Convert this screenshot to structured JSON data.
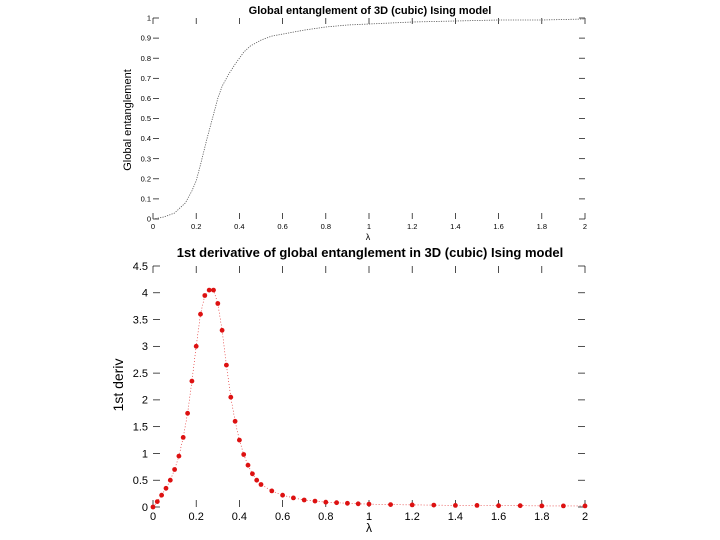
{
  "chart_data": [
    {
      "type": "line",
      "title": "Global entanglement of 3D (cubic) Ising model",
      "xlabel": "λ",
      "ylabel": "Global entanglement",
      "xlim": [
        0,
        2
      ],
      "ylim": [
        0,
        1
      ],
      "xticks": [
        0,
        0.2,
        0.4,
        0.6,
        0.8,
        1,
        1.2,
        1.4,
        1.6,
        1.8,
        2
      ],
      "xtick_labels": [
        "0",
        "0.2",
        "0.4",
        "0.6",
        "0.8",
        "1",
        "1.2",
        "1.4",
        "1.6",
        "1.8",
        "2"
      ],
      "yticks": [
        0,
        0.1,
        0.2,
        0.3,
        0.4,
        0.5,
        0.6,
        0.7,
        0.8,
        0.9,
        1
      ],
      "ytick_labels": [
        "0",
        "0.1",
        "0.2",
        "0.3",
        "0.4",
        "0.5",
        "0.6",
        "0.7",
        "0.8",
        "0.9",
        "1"
      ],
      "grid": false,
      "series": [
        {
          "color": "#555555",
          "x": [
            0.0,
            0.05,
            0.1,
            0.12,
            0.15,
            0.18,
            0.2,
            0.22,
            0.25,
            0.28,
            0.3,
            0.32,
            0.35,
            0.38,
            0.4,
            0.42,
            0.45,
            0.5,
            0.55,
            0.6,
            0.7,
            0.8,
            0.9,
            1.0,
            1.1,
            1.2,
            1.4,
            1.6,
            1.8,
            2.0
          ],
          "y": [
            0.0,
            0.01,
            0.03,
            0.05,
            0.08,
            0.14,
            0.19,
            0.27,
            0.4,
            0.52,
            0.6,
            0.66,
            0.72,
            0.77,
            0.8,
            0.83,
            0.86,
            0.89,
            0.91,
            0.92,
            0.94,
            0.955,
            0.965,
            0.97,
            0.975,
            0.98,
            0.985,
            0.99,
            0.99,
            0.995
          ]
        }
      ]
    },
    {
      "type": "scatter",
      "title": "1st derivative of global entanglement in 3D (cubic) Ising model",
      "xlabel": "λ",
      "ylabel": "1st deriv",
      "xlim": [
        0,
        2
      ],
      "ylim": [
        0,
        4.5
      ],
      "xticks": [
        0,
        0.2,
        0.4,
        0.6,
        0.8,
        1,
        1.2,
        1.4,
        1.6,
        1.8,
        2
      ],
      "xtick_labels": [
        "0",
        "0.2",
        "0.4",
        "0.6",
        "0.8",
        "1",
        "1.2",
        "1.4",
        "1.6",
        "1.8",
        "2"
      ],
      "yticks": [
        0,
        0.5,
        1,
        1.5,
        2,
        2.5,
        3,
        3.5,
        4,
        4.5
      ],
      "ytick_labels": [
        "0",
        "0.5",
        "1",
        "1.5",
        "2",
        "2.5",
        "3",
        "3.5",
        "4",
        "4.5"
      ],
      "grid": false,
      "series": [
        {
          "color": "#dd1111",
          "x": [
            0.0,
            0.02,
            0.04,
            0.06,
            0.08,
            0.1,
            0.12,
            0.14,
            0.16,
            0.18,
            0.2,
            0.22,
            0.24,
            0.26,
            0.28,
            0.3,
            0.32,
            0.34,
            0.36,
            0.38,
            0.4,
            0.42,
            0.44,
            0.46,
            0.48,
            0.5,
            0.55,
            0.6,
            0.65,
            0.7,
            0.75,
            0.8,
            0.85,
            0.9,
            0.95,
            1.0,
            1.1,
            1.2,
            1.3,
            1.4,
            1.5,
            1.6,
            1.7,
            1.8,
            1.9,
            2.0
          ],
          "y": [
            0.0,
            0.1,
            0.22,
            0.35,
            0.5,
            0.7,
            0.95,
            1.3,
            1.75,
            2.35,
            3.0,
            3.6,
            3.95,
            4.05,
            4.05,
            3.8,
            3.3,
            2.65,
            2.05,
            1.6,
            1.25,
            0.98,
            0.78,
            0.62,
            0.5,
            0.42,
            0.3,
            0.22,
            0.17,
            0.13,
            0.11,
            0.09,
            0.08,
            0.07,
            0.06,
            0.055,
            0.045,
            0.04,
            0.035,
            0.03,
            0.03,
            0.025,
            0.025,
            0.02,
            0.02,
            0.02
          ]
        }
      ]
    }
  ]
}
